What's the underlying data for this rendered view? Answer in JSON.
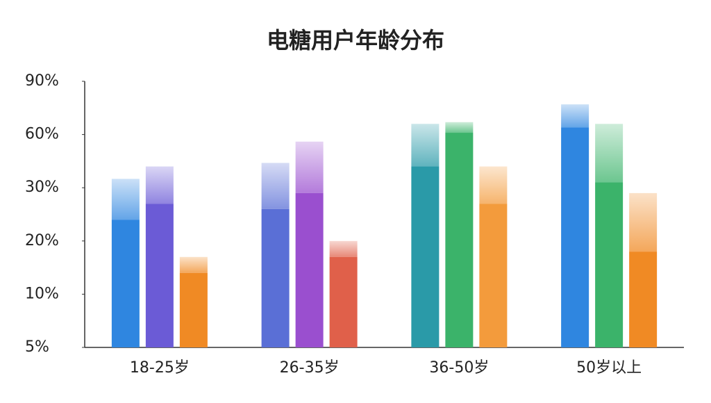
{
  "chart_data": {
    "type": "bar",
    "title": "电糖用户年龄分布",
    "categories": [
      "18-25岁",
      "26-35岁",
      "36-50岁",
      "50岁以上"
    ],
    "series": [
      {
        "colors": [
          "#2f86e0",
          "#5a6fd6",
          "#2a9aa8",
          "#2f86e0"
        ],
        "values": [
          24,
          26,
          42,
          64
        ],
        "faded_values": [
          35,
          44,
          66,
          77
        ]
      },
      {
        "colors": [
          "#6b5bd6",
          "#9a4fcf",
          "#3bb36a",
          "#3bb36a"
        ],
        "values": [
          27,
          29,
          61,
          33
        ],
        "faded_values": [
          42,
          56,
          67,
          66
        ]
      },
      {
        "colors": [
          "#f08a24",
          "#e0604a",
          "#f39b3c",
          "#f08a24"
        ],
        "values": [
          14,
          17,
          27,
          18
        ],
        "faded_values": [
          17,
          20,
          42,
          29
        ]
      }
    ],
    "ylim": [
      5,
      90
    ],
    "yticks": [
      {
        "value": 5,
        "label": "5%"
      },
      {
        "value": 10,
        "label": "10%"
      },
      {
        "value": 20,
        "label": "20%"
      },
      {
        "value": 30,
        "label": "30%"
      },
      {
        "value": 60,
        "label": "60%"
      },
      {
        "value": 90,
        "label": "90%"
      }
    ]
  }
}
